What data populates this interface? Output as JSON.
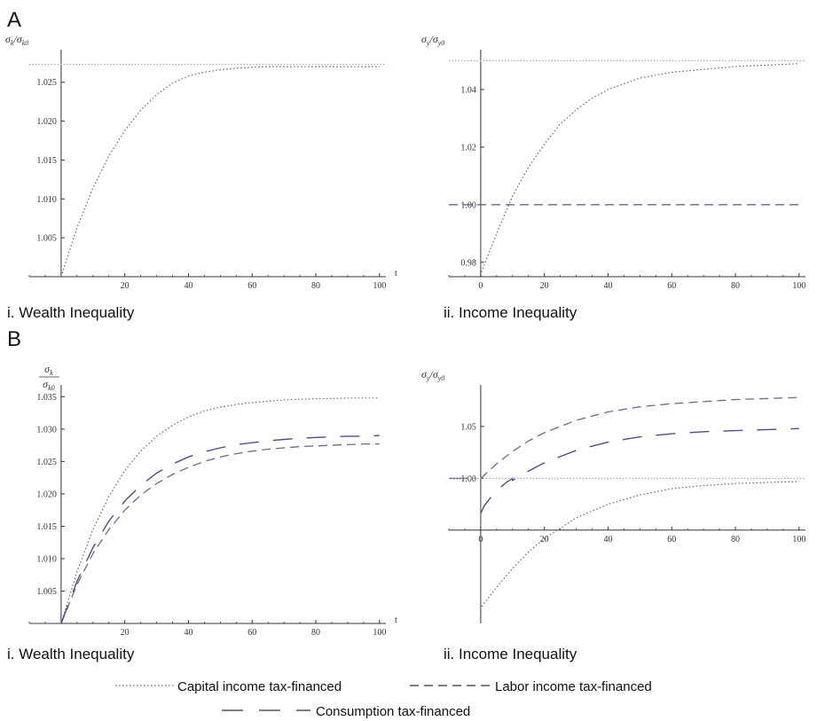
{
  "panel_labels": {
    "A": "A",
    "B": "B"
  },
  "legend": {
    "capital": "Capital income tax-financed",
    "labor": "Labor income tax-financed",
    "consumption": "Consumption tax-financed"
  },
  "colors": {
    "series": "#6a6a8c",
    "axis": "#333333",
    "reference": "#c8a0a8"
  },
  "chart_data": [
    {
      "id": "A-i",
      "type": "line",
      "title": "i. Wealth Inequality",
      "ylabel": [
        "σ",
        "k",
        "/σ",
        "k0"
      ],
      "xlabel": "t",
      "xlim": [
        -10,
        102
      ],
      "ylim": [
        1.0,
        1.0285
      ],
      "xticks": [
        20,
        40,
        60,
        80,
        100
      ],
      "yticks": [
        1.005,
        1.01,
        1.015,
        1.02,
        1.025
      ],
      "ytick_labels": [
        "1.005",
        "1.010",
        "1.015",
        "1.020",
        "1.025"
      ],
      "series": [
        {
          "style": "capital",
          "x": [
            0,
            5,
            10,
            15,
            20,
            25,
            30,
            35,
            40,
            45,
            50,
            55,
            60,
            65,
            70,
            75,
            80,
            85,
            90,
            95,
            100
          ],
          "y": [
            1.0,
            1.0063,
            1.0114,
            1.0155,
            1.0188,
            1.0214,
            1.0234,
            1.0249,
            1.0258,
            1.0263,
            1.0266,
            1.0268,
            1.0269,
            1.027,
            1.027,
            1.027,
            1.027,
            1.027,
            1.027,
            1.027,
            1.027
          ]
        },
        {
          "style": "reference",
          "x": [
            -10,
            102
          ],
          "y": [
            1.0273,
            1.0273
          ]
        }
      ]
    },
    {
      "id": "A-ii",
      "type": "line",
      "title": "ii. Income Inequality",
      "ylabel": [
        "σ",
        "y",
        "/σ",
        "y0"
      ],
      "xlabel": "",
      "xlim": [
        -10,
        102
      ],
      "ylim": [
        0.975,
        1.052
      ],
      "xticks": [
        0,
        20,
        40,
        60,
        80,
        100
      ],
      "yticks": [
        0.98,
        1.0,
        1.02,
        1.04
      ],
      "ytick_labels": [
        "0.98",
        "1.00",
        "1.02",
        "1.04"
      ],
      "series": [
        {
          "style": "capital",
          "x": [
            0,
            0,
            5,
            10,
            15,
            20,
            25,
            30,
            35,
            40,
            45,
            50,
            60,
            70,
            80,
            90,
            100
          ],
          "y": [
            1.0,
            0.976,
            0.99,
            1.003,
            1.013,
            1.021,
            1.028,
            1.033,
            1.037,
            1.04,
            1.042,
            1.044,
            1.046,
            1.047,
            1.048,
            1.0485,
            1.049
          ]
        },
        {
          "style": "labor",
          "x": [
            -10,
            0,
            100
          ],
          "y": [
            1.0,
            1.0,
            1.0
          ]
        },
        {
          "style": "reference",
          "x": [
            -10,
            102
          ],
          "y": [
            1.05,
            1.05
          ]
        }
      ]
    },
    {
      "id": "B-i",
      "type": "line",
      "title": "i. Wealth Inequality",
      "ylabel": [
        "σ",
        "k",
        "σ",
        "k0"
      ],
      "xlabel": "t",
      "xlim": [
        -10,
        102
      ],
      "ylim": [
        1.0,
        1.036
      ],
      "xticks": [
        20,
        40,
        60,
        80,
        100
      ],
      "yticks": [
        1.005,
        1.01,
        1.015,
        1.02,
        1.025,
        1.03,
        1.035
      ],
      "ytick_labels": [
        "1.005",
        "1.010",
        "1.015",
        "1.020",
        "1.025",
        "1.030",
        "1.035"
      ],
      "series": [
        {
          "style": "capital",
          "x": [
            -10,
            0,
            5,
            10,
            15,
            20,
            25,
            30,
            35,
            40,
            45,
            50,
            55,
            60,
            65,
            70,
            75,
            80,
            85,
            90,
            95,
            100
          ],
          "y": [
            1.0,
            1.0,
            1.008,
            1.0145,
            1.0196,
            1.0236,
            1.0266,
            1.0289,
            1.0306,
            1.0319,
            1.0328,
            1.0334,
            1.0338,
            1.0341,
            1.0343,
            1.0345,
            1.0346,
            1.0347,
            1.0347,
            1.0348,
            1.0348,
            1.0348
          ]
        },
        {
          "style": "labor",
          "x": [
            0,
            5,
            10,
            15,
            20,
            25,
            30,
            35,
            40,
            45,
            50,
            55,
            60,
            65,
            70,
            75,
            80,
            85,
            90,
            95,
            100
          ],
          "y": [
            1.0,
            1.006,
            1.0108,
            1.0145,
            1.0175,
            1.0198,
            1.0216,
            1.023,
            1.0241,
            1.025,
            1.0257,
            1.0262,
            1.0266,
            1.0269,
            1.0271,
            1.0273,
            1.0274,
            1.0275,
            1.0276,
            1.0277,
            1.0277
          ]
        },
        {
          "style": "consumption",
          "x": [
            0,
            5,
            10,
            15,
            20,
            25,
            30,
            35,
            40,
            45,
            50,
            55,
            60,
            65,
            70,
            75,
            80,
            85,
            90,
            95,
            100
          ],
          "y": [
            1.0,
            1.0065,
            1.0117,
            1.0158,
            1.0189,
            1.0213,
            1.0232,
            1.0246,
            1.0257,
            1.0265,
            1.0271,
            1.0276,
            1.0279,
            1.0282,
            1.0284,
            1.0286,
            1.0287,
            1.0288,
            1.0289,
            1.0289,
            1.029
          ]
        }
      ]
    },
    {
      "id": "B-ii",
      "type": "line",
      "title": "ii. Income Inequality",
      "ylabel": [
        "σ",
        "y",
        "/σ",
        "y0"
      ],
      "xlabel": "",
      "xlim": [
        -10,
        102
      ],
      "ylim": [
        0.86,
        1.085
      ],
      "xticks": [
        0,
        20,
        40,
        60,
        80,
        100
      ],
      "yticks": [
        1.0,
        1.05
      ],
      "ytick_labels": [
        "1.00",
        "1.05"
      ],
      "series": [
        {
          "style": "capital",
          "x": [
            0,
            0,
            5,
            10,
            15,
            20,
            30,
            40,
            50,
            60,
            70,
            80,
            90,
            100
          ],
          "y": [
            1.0,
            0.875,
            0.895,
            0.913,
            0.929,
            0.942,
            0.962,
            0.975,
            0.984,
            0.99,
            0.993,
            0.995,
            0.996,
            0.997
          ]
        },
        {
          "style": "labor",
          "x": [
            0,
            5,
            10,
            15,
            20,
            30,
            40,
            50,
            60,
            70,
            80,
            90,
            100
          ],
          "y": [
            1.0,
            1.014,
            1.026,
            1.036,
            1.044,
            1.056,
            1.064,
            1.069,
            1.072,
            1.074,
            1.076,
            1.077,
            1.078
          ]
        },
        {
          "style": "consumption",
          "x": [
            0,
            1,
            3,
            5,
            8,
            10,
            10,
            15,
            20,
            30,
            40,
            50,
            60,
            70,
            80,
            90,
            100
          ],
          "y": [
            0.966,
            0.973,
            0.981,
            0.988,
            0.996,
            1.0,
            0.998,
            1.007,
            1.015,
            1.027,
            1.035,
            1.04,
            1.043,
            1.045,
            1.046,
            1.047,
            1.048
          ]
        },
        {
          "style": "consumption",
          "x": [
            -10,
            0
          ],
          "y": [
            1.0,
            1.0
          ]
        },
        {
          "style": "reference",
          "x": [
            -10,
            102
          ],
          "y": [
            1.0,
            1.0
          ]
        }
      ]
    }
  ]
}
